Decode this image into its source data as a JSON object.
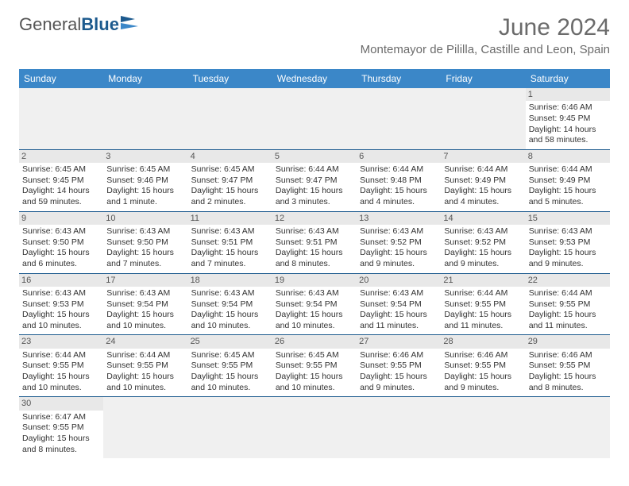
{
  "logo": {
    "text1": "General",
    "text2": "Blue"
  },
  "title": "June 2024",
  "location": "Montemayor de Pililla, Castille and Leon, Spain",
  "colors": {
    "header_bg": "#3b87c8",
    "header_text": "#ffffff",
    "border": "#1c5a8e",
    "daynum_bg": "#e8e8e8",
    "empty_bg": "#f0f0f0",
    "title_color": "#6b6b6b"
  },
  "day_headers": [
    "Sunday",
    "Monday",
    "Tuesday",
    "Wednesday",
    "Thursday",
    "Friday",
    "Saturday"
  ],
  "weeks": [
    [
      null,
      null,
      null,
      null,
      null,
      null,
      {
        "n": "1",
        "sr": "Sunrise: 6:46 AM",
        "ss": "Sunset: 9:45 PM",
        "dl1": "Daylight: 14 hours",
        "dl2": "and 58 minutes."
      }
    ],
    [
      {
        "n": "2",
        "sr": "Sunrise: 6:45 AM",
        "ss": "Sunset: 9:45 PM",
        "dl1": "Daylight: 14 hours",
        "dl2": "and 59 minutes."
      },
      {
        "n": "3",
        "sr": "Sunrise: 6:45 AM",
        "ss": "Sunset: 9:46 PM",
        "dl1": "Daylight: 15 hours",
        "dl2": "and 1 minute."
      },
      {
        "n": "4",
        "sr": "Sunrise: 6:45 AM",
        "ss": "Sunset: 9:47 PM",
        "dl1": "Daylight: 15 hours",
        "dl2": "and 2 minutes."
      },
      {
        "n": "5",
        "sr": "Sunrise: 6:44 AM",
        "ss": "Sunset: 9:47 PM",
        "dl1": "Daylight: 15 hours",
        "dl2": "and 3 minutes."
      },
      {
        "n": "6",
        "sr": "Sunrise: 6:44 AM",
        "ss": "Sunset: 9:48 PM",
        "dl1": "Daylight: 15 hours",
        "dl2": "and 4 minutes."
      },
      {
        "n": "7",
        "sr": "Sunrise: 6:44 AM",
        "ss": "Sunset: 9:49 PM",
        "dl1": "Daylight: 15 hours",
        "dl2": "and 4 minutes."
      },
      {
        "n": "8",
        "sr": "Sunrise: 6:44 AM",
        "ss": "Sunset: 9:49 PM",
        "dl1": "Daylight: 15 hours",
        "dl2": "and 5 minutes."
      }
    ],
    [
      {
        "n": "9",
        "sr": "Sunrise: 6:43 AM",
        "ss": "Sunset: 9:50 PM",
        "dl1": "Daylight: 15 hours",
        "dl2": "and 6 minutes."
      },
      {
        "n": "10",
        "sr": "Sunrise: 6:43 AM",
        "ss": "Sunset: 9:50 PM",
        "dl1": "Daylight: 15 hours",
        "dl2": "and 7 minutes."
      },
      {
        "n": "11",
        "sr": "Sunrise: 6:43 AM",
        "ss": "Sunset: 9:51 PM",
        "dl1": "Daylight: 15 hours",
        "dl2": "and 7 minutes."
      },
      {
        "n": "12",
        "sr": "Sunrise: 6:43 AM",
        "ss": "Sunset: 9:51 PM",
        "dl1": "Daylight: 15 hours",
        "dl2": "and 8 minutes."
      },
      {
        "n": "13",
        "sr": "Sunrise: 6:43 AM",
        "ss": "Sunset: 9:52 PM",
        "dl1": "Daylight: 15 hours",
        "dl2": "and 9 minutes."
      },
      {
        "n": "14",
        "sr": "Sunrise: 6:43 AM",
        "ss": "Sunset: 9:52 PM",
        "dl1": "Daylight: 15 hours",
        "dl2": "and 9 minutes."
      },
      {
        "n": "15",
        "sr": "Sunrise: 6:43 AM",
        "ss": "Sunset: 9:53 PM",
        "dl1": "Daylight: 15 hours",
        "dl2": "and 9 minutes."
      }
    ],
    [
      {
        "n": "16",
        "sr": "Sunrise: 6:43 AM",
        "ss": "Sunset: 9:53 PM",
        "dl1": "Daylight: 15 hours",
        "dl2": "and 10 minutes."
      },
      {
        "n": "17",
        "sr": "Sunrise: 6:43 AM",
        "ss": "Sunset: 9:54 PM",
        "dl1": "Daylight: 15 hours",
        "dl2": "and 10 minutes."
      },
      {
        "n": "18",
        "sr": "Sunrise: 6:43 AM",
        "ss": "Sunset: 9:54 PM",
        "dl1": "Daylight: 15 hours",
        "dl2": "and 10 minutes."
      },
      {
        "n": "19",
        "sr": "Sunrise: 6:43 AM",
        "ss": "Sunset: 9:54 PM",
        "dl1": "Daylight: 15 hours",
        "dl2": "and 10 minutes."
      },
      {
        "n": "20",
        "sr": "Sunrise: 6:43 AM",
        "ss": "Sunset: 9:54 PM",
        "dl1": "Daylight: 15 hours",
        "dl2": "and 11 minutes."
      },
      {
        "n": "21",
        "sr": "Sunrise: 6:44 AM",
        "ss": "Sunset: 9:55 PM",
        "dl1": "Daylight: 15 hours",
        "dl2": "and 11 minutes."
      },
      {
        "n": "22",
        "sr": "Sunrise: 6:44 AM",
        "ss": "Sunset: 9:55 PM",
        "dl1": "Daylight: 15 hours",
        "dl2": "and 11 minutes."
      }
    ],
    [
      {
        "n": "23",
        "sr": "Sunrise: 6:44 AM",
        "ss": "Sunset: 9:55 PM",
        "dl1": "Daylight: 15 hours",
        "dl2": "and 10 minutes."
      },
      {
        "n": "24",
        "sr": "Sunrise: 6:44 AM",
        "ss": "Sunset: 9:55 PM",
        "dl1": "Daylight: 15 hours",
        "dl2": "and 10 minutes."
      },
      {
        "n": "25",
        "sr": "Sunrise: 6:45 AM",
        "ss": "Sunset: 9:55 PM",
        "dl1": "Daylight: 15 hours",
        "dl2": "and 10 minutes."
      },
      {
        "n": "26",
        "sr": "Sunrise: 6:45 AM",
        "ss": "Sunset: 9:55 PM",
        "dl1": "Daylight: 15 hours",
        "dl2": "and 10 minutes."
      },
      {
        "n": "27",
        "sr": "Sunrise: 6:46 AM",
        "ss": "Sunset: 9:55 PM",
        "dl1": "Daylight: 15 hours",
        "dl2": "and 9 minutes."
      },
      {
        "n": "28",
        "sr": "Sunrise: 6:46 AM",
        "ss": "Sunset: 9:55 PM",
        "dl1": "Daylight: 15 hours",
        "dl2": "and 9 minutes."
      },
      {
        "n": "29",
        "sr": "Sunrise: 6:46 AM",
        "ss": "Sunset: 9:55 PM",
        "dl1": "Daylight: 15 hours",
        "dl2": "and 8 minutes."
      }
    ],
    [
      {
        "n": "30",
        "sr": "Sunrise: 6:47 AM",
        "ss": "Sunset: 9:55 PM",
        "dl1": "Daylight: 15 hours",
        "dl2": "and 8 minutes."
      },
      null,
      null,
      null,
      null,
      null,
      null
    ]
  ]
}
